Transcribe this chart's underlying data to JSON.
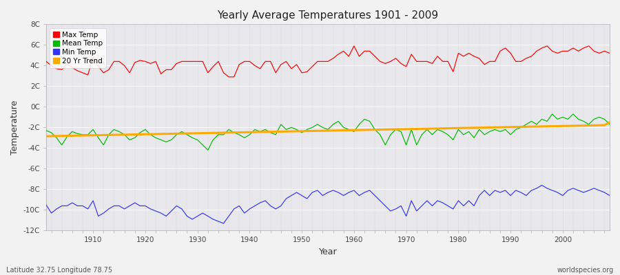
{
  "title": "Yearly Average Temperatures 1901 - 2009",
  "xlabel": "Year",
  "ylabel": "Temperature",
  "xlim": [
    1901,
    2009
  ],
  "ylim": [
    -12,
    8
  ],
  "yticks": [
    -12,
    -10,
    -8,
    -6,
    -4,
    -2,
    0,
    2,
    4,
    6,
    8
  ],
  "ytick_labels": [
    "-12C",
    "-10C",
    "-8C",
    "-6C",
    "-4C",
    "-2C",
    "0C",
    "2C",
    "4C",
    "6C",
    "8C"
  ],
  "xticks": [
    1910,
    1920,
    1930,
    1940,
    1950,
    1960,
    1970,
    1980,
    1990,
    2000
  ],
  "legend_labels": [
    "Max Temp",
    "Mean Temp",
    "Min Temp",
    "20 Yr Trend"
  ],
  "legend_colors": [
    "#ff0000",
    "#00aa00",
    "#0000ff",
    "#ffaa00"
  ],
  "bg_color": "#e8e8ec",
  "plot_bg_color": "#e8e8ec",
  "fig_bg_color": "#f5f5f5",
  "grid_color": "#ffffff",
  "footer_left": "Latitude 32.75 Longitude 78.75",
  "footer_right": "worldspecies.org",
  "max_temp": [
    4.4,
    4.0,
    3.7,
    3.6,
    4.2,
    3.8,
    3.5,
    3.3,
    3.1,
    4.8,
    3.9,
    3.3,
    3.6,
    4.4,
    4.4,
    4.0,
    3.3,
    4.3,
    4.5,
    4.4,
    4.2,
    4.4,
    3.2,
    3.6,
    3.6,
    4.2,
    4.4,
    4.4,
    4.4,
    4.4,
    4.4,
    3.3,
    3.9,
    4.4,
    3.3,
    2.9,
    2.9,
    4.1,
    4.4,
    4.4,
    4.0,
    3.7,
    4.4,
    4.4,
    3.3,
    4.1,
    4.4,
    3.7,
    4.1,
    3.3,
    3.4,
    3.9,
    4.4,
    4.4,
    4.4,
    4.7,
    5.1,
    5.4,
    4.9,
    5.9,
    4.9,
    5.4,
    5.4,
    4.9,
    4.4,
    4.2,
    4.4,
    4.7,
    4.2,
    3.9,
    5.1,
    4.4,
    4.4,
    4.4,
    4.2,
    4.9,
    4.4,
    4.4,
    3.4,
    5.2,
    4.9,
    5.2,
    4.9,
    4.7,
    4.1,
    4.4,
    4.4,
    5.4,
    5.7,
    5.2,
    4.4,
    4.4,
    4.7,
    4.9,
    5.4,
    5.7,
    5.9,
    5.4,
    5.2,
    5.4,
    5.4,
    5.7,
    5.4,
    5.7,
    5.9,
    5.4,
    5.2,
    5.4,
    5.2
  ],
  "mean_temp": [
    -2.3,
    -2.5,
    -3.0,
    -3.7,
    -2.9,
    -2.4,
    -2.6,
    -2.7,
    -2.7,
    -2.2,
    -3.0,
    -3.7,
    -2.7,
    -2.2,
    -2.4,
    -2.7,
    -3.2,
    -3.0,
    -2.5,
    -2.2,
    -2.7,
    -3.0,
    -3.2,
    -3.4,
    -3.2,
    -2.7,
    -2.4,
    -2.7,
    -3.0,
    -3.2,
    -3.7,
    -4.2,
    -3.2,
    -2.7,
    -2.7,
    -2.2,
    -2.5,
    -2.7,
    -3.0,
    -2.7,
    -2.2,
    -2.4,
    -2.2,
    -2.5,
    -2.7,
    -1.7,
    -2.2,
    -2.0,
    -2.2,
    -2.5,
    -2.2,
    -2.0,
    -1.7,
    -2.0,
    -2.2,
    -1.7,
    -1.4,
    -2.0,
    -2.2,
    -2.4,
    -1.7,
    -1.2,
    -1.4,
    -2.2,
    -2.7,
    -3.7,
    -2.7,
    -2.2,
    -2.4,
    -3.7,
    -2.2,
    -3.7,
    -2.7,
    -2.2,
    -2.7,
    -2.2,
    -2.4,
    -2.7,
    -3.2,
    -2.2,
    -2.7,
    -2.4,
    -3.0,
    -2.2,
    -2.7,
    -2.4,
    -2.2,
    -2.4,
    -2.2,
    -2.7,
    -2.2,
    -2.0,
    -1.7,
    -1.4,
    -1.7,
    -1.2,
    -1.4,
    -0.7,
    -1.2,
    -1.0,
    -1.2,
    -0.7,
    -1.2,
    -1.4,
    -1.7,
    -1.2,
    -1.0,
    -1.2,
    -1.7
  ],
  "min_temp": [
    -9.5,
    -10.3,
    -9.9,
    -9.6,
    -9.6,
    -9.3,
    -9.6,
    -9.6,
    -9.9,
    -9.1,
    -10.6,
    -10.3,
    -9.9,
    -9.6,
    -9.6,
    -9.9,
    -9.6,
    -9.3,
    -9.6,
    -9.6,
    -9.9,
    -10.1,
    -10.3,
    -10.6,
    -10.1,
    -9.6,
    -9.9,
    -10.6,
    -10.9,
    -10.6,
    -10.3,
    -10.6,
    -10.9,
    -11.1,
    -11.3,
    -10.6,
    -9.9,
    -9.6,
    -10.3,
    -9.9,
    -9.6,
    -9.3,
    -9.1,
    -9.6,
    -9.9,
    -9.6,
    -8.9,
    -8.6,
    -8.3,
    -8.6,
    -8.9,
    -8.3,
    -8.1,
    -8.6,
    -8.3,
    -8.1,
    -8.3,
    -8.6,
    -8.3,
    -8.1,
    -8.6,
    -8.3,
    -8.1,
    -8.6,
    -9.1,
    -9.6,
    -10.1,
    -9.9,
    -9.6,
    -10.6,
    -9.1,
    -10.1,
    -9.6,
    -9.1,
    -9.6,
    -9.1,
    -9.3,
    -9.6,
    -9.9,
    -9.1,
    -9.6,
    -9.1,
    -9.6,
    -8.6,
    -8.1,
    -8.6,
    -8.1,
    -8.3,
    -8.1,
    -8.6,
    -8.1,
    -8.3,
    -8.6,
    -8.1,
    -7.9,
    -7.6,
    -7.9,
    -8.1,
    -8.3,
    -8.6,
    -8.1,
    -7.9,
    -8.1,
    -8.3,
    -8.1,
    -7.9,
    -8.1,
    -8.3,
    -8.6
  ],
  "trend_x": [
    1901,
    1902,
    1903,
    1904,
    1905,
    1906,
    1907,
    1908,
    1909,
    1910,
    1911,
    1912,
    1913,
    1914,
    1915,
    1916,
    1917,
    1918,
    1919,
    1920,
    1921,
    1922,
    1923,
    1924,
    1925,
    1926,
    1927,
    1928,
    1929,
    1930,
    1931,
    1932,
    1933,
    1934,
    1935,
    1936,
    1937,
    1938,
    1939,
    1940,
    1941,
    1942,
    1943,
    1944,
    1945,
    1946,
    1947,
    1948,
    1949,
    1950,
    1951,
    1952,
    1953,
    1954,
    1955,
    1956,
    1957,
    1958,
    1959,
    1960,
    1961,
    1962,
    1963,
    1964,
    1965,
    1966,
    1967,
    1968,
    1969,
    1970,
    1971,
    1972,
    1973,
    1974,
    1975,
    1976,
    1977,
    1978,
    1979,
    1980,
    1981,
    1982,
    1983,
    1984,
    1985,
    1986,
    1987,
    1988,
    1989,
    1990,
    1991,
    1992,
    1993,
    1994,
    1995,
    1996,
    1997,
    1998,
    1999,
    2000,
    2001,
    2002,
    2003,
    2004,
    2005,
    2006,
    2007,
    2008,
    2009
  ],
  "trend_y": [
    -2.85,
    -2.84,
    -2.83,
    -2.82,
    -2.81,
    -2.8,
    -2.79,
    -2.78,
    -2.77,
    -2.76,
    -2.75,
    -2.74,
    -2.73,
    -2.72,
    -2.71,
    -2.7,
    -2.69,
    -2.68,
    -2.67,
    -2.66,
    -2.65,
    -2.64,
    -2.63,
    -2.62,
    -2.61,
    -2.6,
    -2.59,
    -2.58,
    -2.57,
    -2.56,
    -2.55,
    -2.54,
    -2.53,
    -2.52,
    -2.51,
    -2.5,
    -2.49,
    -2.48,
    -2.47,
    -2.46,
    -2.45,
    -2.44,
    -2.43,
    -2.42,
    -2.41,
    -2.4,
    -2.39,
    -2.38,
    -2.37,
    -2.36,
    -2.35,
    -2.34,
    -2.33,
    -2.32,
    -2.31,
    -2.3,
    -2.29,
    -2.28,
    -2.27,
    -2.26,
    -2.25,
    -2.24,
    -2.23,
    -2.22,
    -2.21,
    -2.2,
    -2.19,
    -2.18,
    -2.17,
    -2.16,
    -2.15,
    -2.14,
    -2.13,
    -2.12,
    -2.11,
    -2.1,
    -2.09,
    -2.08,
    -2.07,
    -2.06,
    -2.05,
    -2.04,
    -2.03,
    -2.02,
    -2.01,
    -2.0,
    -1.99,
    -1.98,
    -1.97,
    -1.96,
    -1.95,
    -1.94,
    -1.93,
    -1.92,
    -1.91,
    -1.9,
    -1.89,
    -1.88,
    -1.87,
    -1.86,
    -1.85,
    -1.84,
    -1.83,
    -1.82,
    -1.81,
    -1.8,
    -1.79,
    -1.78,
    -1.5
  ]
}
